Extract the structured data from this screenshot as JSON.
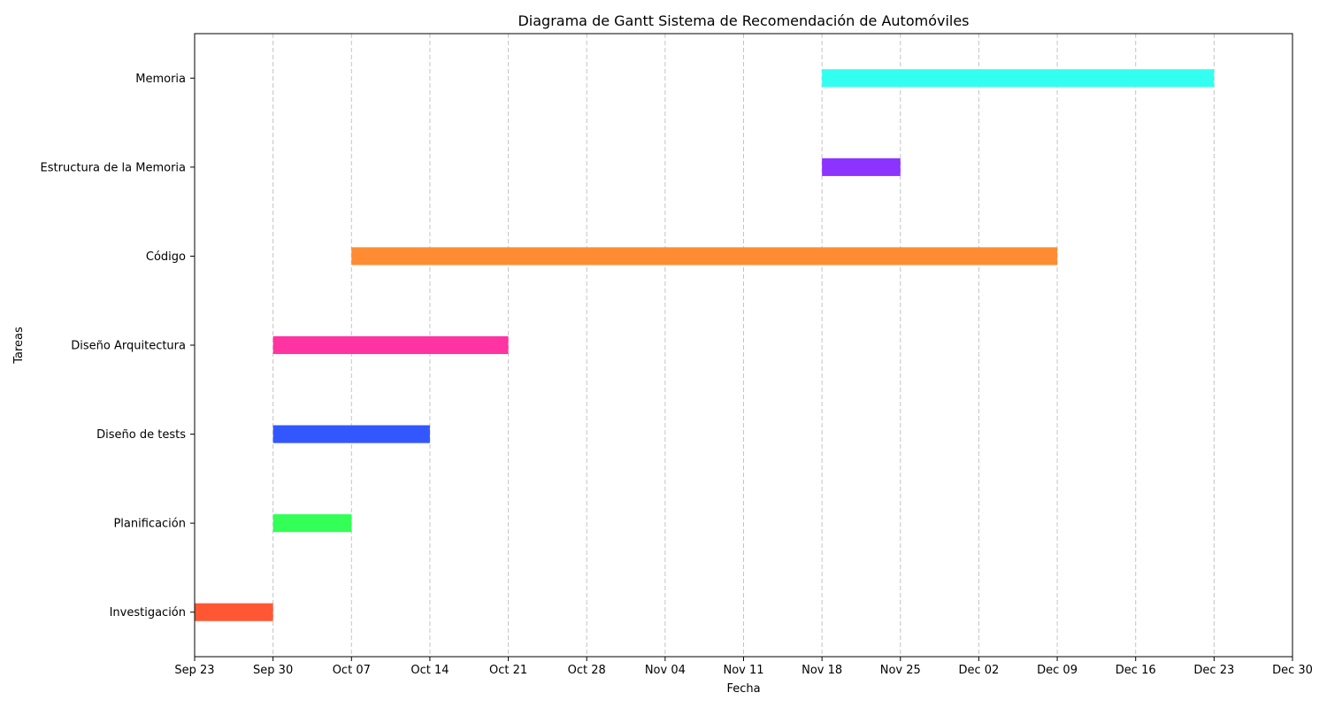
{
  "chart_data": {
    "type": "gantt",
    "title": "Diagrama de Gantt Sistema de Recomendación de Automóviles",
    "xlabel": "Fecha",
    "ylabel": "Tareas",
    "x_is_date": true,
    "xlim": [
      "Sep 23",
      "Dec 30"
    ],
    "grid": {
      "x": true,
      "y": false,
      "style": "dashed"
    },
    "x_ticks": [
      "Sep 23",
      "Sep 30",
      "Oct 07",
      "Oct 14",
      "Oct 21",
      "Oct 28",
      "Nov 04",
      "Nov 11",
      "Nov 18",
      "Nov 25",
      "Dec 02",
      "Dec 09",
      "Dec 16",
      "Dec 23",
      "Dec 30"
    ],
    "tasks": [
      {
        "name": "Investigación",
        "start": "Sep 23",
        "end": "Sep 30",
        "color": "#ff5733"
      },
      {
        "name": "Planificación",
        "start": "Sep 30",
        "end": "Oct 07",
        "color": "#33ff57"
      },
      {
        "name": "Diseño de tests",
        "start": "Sep 30",
        "end": "Oct 14",
        "color": "#3357ff"
      },
      {
        "name": "Diseño Arquitectura",
        "start": "Sep 30",
        "end": "Oct 21",
        "color": "#ff33a1"
      },
      {
        "name": "Código",
        "start": "Oct 07",
        "end": "Dec 09",
        "color": "#ff8c33"
      },
      {
        "name": "Estructura de la Memoria",
        "start": "Nov 18",
        "end": "Nov 25",
        "color": "#8c33ff"
      },
      {
        "name": "Memoria",
        "start": "Nov 18",
        "end": "Dec 23",
        "color": "#33fff0"
      }
    ]
  }
}
